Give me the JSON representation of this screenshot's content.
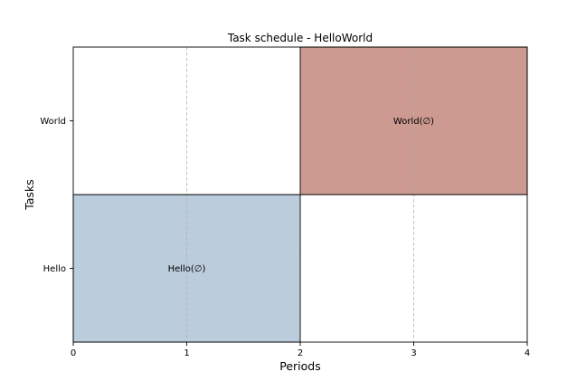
{
  "chart_data": {
    "type": "bar",
    "orientation": "horizontal",
    "title": "Task schedule - HelloWorld",
    "xlabel": "Periods",
    "ylabel": "Tasks",
    "xlim": [
      0,
      4
    ],
    "xticks": [
      0,
      1,
      2,
      3,
      4
    ],
    "categories": [
      "Hello",
      "World"
    ],
    "bars": [
      {
        "task": "Hello",
        "start": 0,
        "end": 2,
        "label": "Hello(∅)",
        "color": "#bbccdd"
      },
      {
        "task": "World",
        "start": 2,
        "end": 4,
        "label": "World(∅)",
        "color": "#cc9a91"
      }
    ],
    "grid": {
      "x": true,
      "y": false
    }
  }
}
